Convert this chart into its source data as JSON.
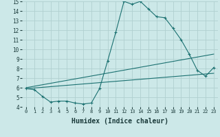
{
  "xlabel": "Humidex (Indice chaleur)",
  "background_color": "#cce8e8",
  "grid_color": "#b0d0d0",
  "line_color": "#1a7070",
  "xlim": [
    -0.5,
    23.5
  ],
  "ylim": [
    4,
    15
  ],
  "xticks": [
    0,
    1,
    2,
    3,
    4,
    5,
    6,
    7,
    8,
    9,
    10,
    11,
    12,
    13,
    14,
    15,
    16,
    17,
    18,
    19,
    20,
    21,
    22,
    23
  ],
  "yticks": [
    4,
    5,
    6,
    7,
    8,
    9,
    10,
    11,
    12,
    13,
    14,
    15
  ],
  "line1_x": [
    0,
    1,
    2,
    3,
    4,
    5,
    6,
    7,
    8,
    9,
    10,
    11,
    12,
    13,
    14,
    15,
    16,
    17,
    18,
    19,
    20,
    21,
    22,
    23
  ],
  "line1_y": [
    5.9,
    5.8,
    5.1,
    4.5,
    4.6,
    4.6,
    4.4,
    4.3,
    4.4,
    5.9,
    8.8,
    11.8,
    15.0,
    14.7,
    15.0,
    14.2,
    13.4,
    13.3,
    12.2,
    11.0,
    9.5,
    7.8,
    7.2,
    8.1
  ],
  "line2_x": [
    0,
    23
  ],
  "line2_y": [
    5.9,
    7.5
  ],
  "line3_x": [
    0,
    23
  ],
  "line3_y": [
    6.0,
    9.5
  ],
  "xlabel_fontsize": 7,
  "tick_fontsize": 5.5
}
